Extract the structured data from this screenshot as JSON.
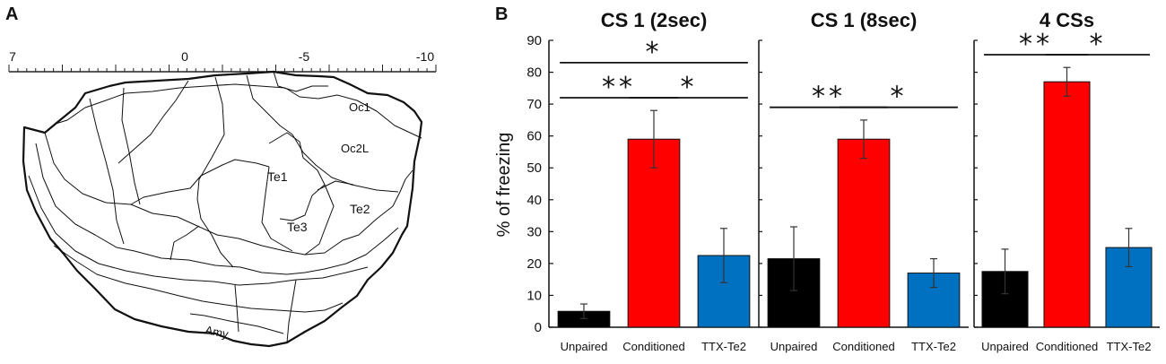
{
  "panel_a": {
    "label": "A",
    "scale_labels": [
      "7",
      "0",
      "-5",
      "-10"
    ],
    "regions": [
      "Oc1",
      "Oc2L",
      "Te1",
      "Te2",
      "Te3",
      "Amy"
    ]
  },
  "panel_b": {
    "label": "B",
    "ylabel": "% of freezing",
    "yticks": [
      "0",
      "10",
      "20",
      "30",
      "40",
      "50",
      "60",
      "70",
      "80",
      "90"
    ]
  },
  "chart_data": [
    {
      "type": "bar",
      "title": "CS 1 (2sec)",
      "categories": [
        "Unpaired",
        "Conditioned",
        "TTX-Te2"
      ],
      "values": [
        5,
        59,
        22.5
      ],
      "errors": [
        2.3,
        9,
        8.5
      ],
      "colors": [
        "#000000",
        "#ff0000",
        "#0070c0"
      ],
      "ylabel": "% of freezing",
      "ylim": [
        0,
        90
      ],
      "significance": [
        {
          "from": 0,
          "to": 1,
          "label": "**"
        },
        {
          "from": 1,
          "to": 2,
          "label": "*"
        },
        {
          "from": 0,
          "to": 2,
          "label": "*"
        }
      ]
    },
    {
      "type": "bar",
      "title": "CS 1 (8sec)",
      "categories": [
        "Unpaired",
        "Conditioned",
        "TTX-Te2"
      ],
      "values": [
        21.5,
        59,
        17
      ],
      "errors": [
        10,
        6,
        4.5
      ],
      "colors": [
        "#000000",
        "#ff0000",
        "#0070c0"
      ],
      "ylim": [
        0,
        90
      ],
      "significance": [
        {
          "from": 0,
          "to": 1,
          "label": "**"
        },
        {
          "from": 1,
          "to": 2,
          "label": "*"
        }
      ]
    },
    {
      "type": "bar",
      "title": "4 CSs",
      "categories": [
        "Unpaired",
        "Conditioned",
        "TTX-Te2"
      ],
      "values": [
        17.5,
        77,
        25
      ],
      "errors": [
        7,
        4.5,
        6
      ],
      "colors": [
        "#000000",
        "#ff0000",
        "#0070c0"
      ],
      "ylim": [
        0,
        90
      ],
      "significance": [
        {
          "from": 0,
          "to": 1,
          "label": "**"
        },
        {
          "from": 1,
          "to": 2,
          "label": "*"
        }
      ]
    }
  ]
}
